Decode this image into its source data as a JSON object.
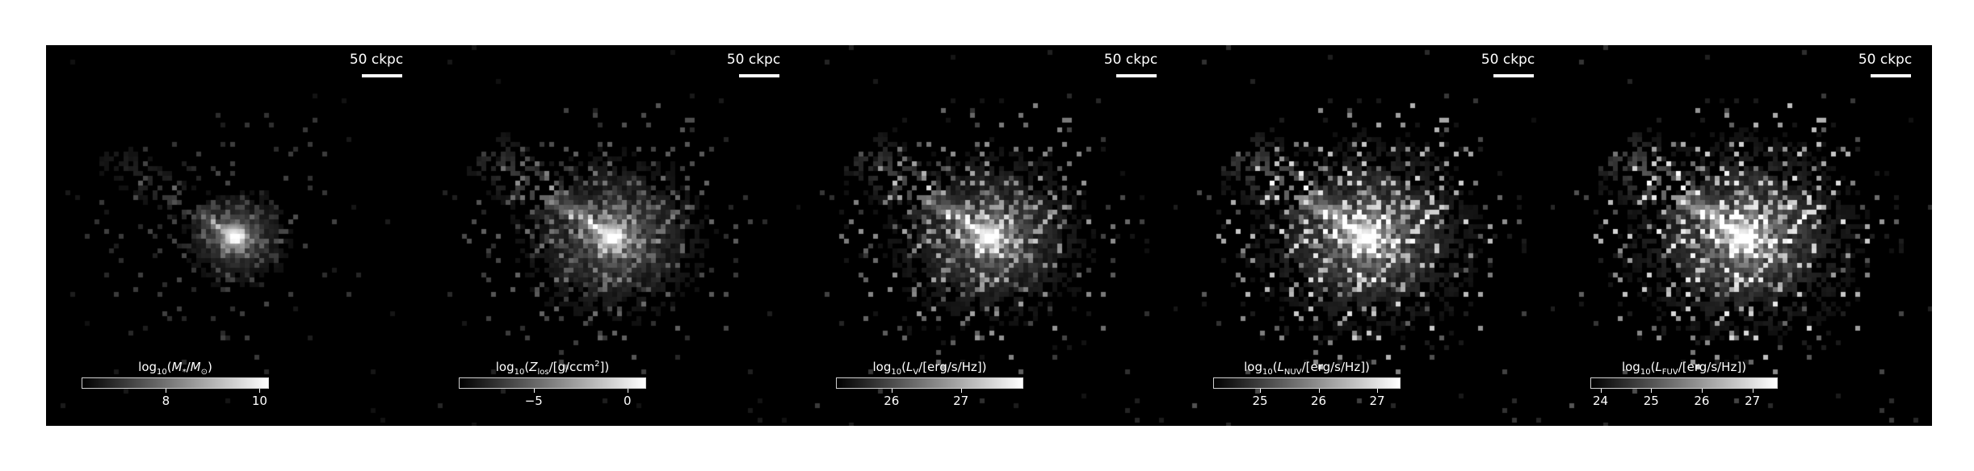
{
  "scale_bar_label": "50 ckpc",
  "panels": [
    {
      "scale_label": "50 ckpc",
      "colorbar_label": "log<sub>10</sub>(<i>M</i><sub>*</sub>/<i>M</i><sub>⊙</sub>)",
      "colorbar_range": [
        6.2,
        10.2
      ],
      "ticks": [
        {
          "value": 8,
          "label": "8"
        },
        {
          "value": 10,
          "label": "10"
        }
      ],
      "map_style": {
        "core_gain": 1.0,
        "halo_gain": 0.35,
        "noise_gain": 0.25,
        "spread": 0.7
      }
    },
    {
      "scale_label": "50 ckpc",
      "colorbar_label": "log<sub>10</sub>(<i>Z</i><sub>los</sub>/[g/ccm<sup>2</sup>])",
      "colorbar_range": [
        -9,
        1
      ],
      "ticks": [
        {
          "value": -5,
          "label": "−5"
        },
        {
          "value": 0,
          "label": "0"
        }
      ],
      "map_style": {
        "core_gain": 0.95,
        "halo_gain": 0.55,
        "noise_gain": 0.35,
        "spread": 1.0
      }
    },
    {
      "scale_label": "50 ckpc",
      "colorbar_label": "log<sub>10</sub>(<i>L</i><sub>V</sub>/[erg/s/Hz])",
      "colorbar_range": [
        25.2,
        27.9
      ],
      "ticks": [
        {
          "value": 26,
          "label": "26"
        },
        {
          "value": 27,
          "label": "27"
        }
      ],
      "map_style": {
        "core_gain": 1.0,
        "halo_gain": 0.6,
        "noise_gain": 0.55,
        "spread": 1.0
      }
    },
    {
      "scale_label": "50 ckpc",
      "colorbar_label": "log<sub>10</sub>(<i>L</i><sub>NUV</sub>/[erg/s/Hz])",
      "colorbar_range": [
        24.2,
        27.4
      ],
      "ticks": [
        {
          "value": 25,
          "label": "25"
        },
        {
          "value": 26,
          "label": "26"
        },
        {
          "value": 27,
          "label": "27"
        }
      ],
      "map_style": {
        "core_gain": 0.95,
        "halo_gain": 0.75,
        "noise_gain": 0.75,
        "spread": 1.05
      }
    },
    {
      "scale_label": "50 ckpc",
      "colorbar_label": "log<sub>10</sub>(<i>L</i><sub>FUV</sub>/[erg/s/Hz])",
      "colorbar_range": [
        23.8,
        27.5
      ],
      "ticks": [
        {
          "value": 24,
          "label": "24"
        },
        {
          "value": 25,
          "label": "25"
        },
        {
          "value": 26,
          "label": "26"
        },
        {
          "value": 27,
          "label": "27"
        }
      ],
      "map_style": {
        "core_gain": 0.95,
        "halo_gain": 0.8,
        "noise_gain": 0.8,
        "spread": 1.05
      }
    }
  ]
}
